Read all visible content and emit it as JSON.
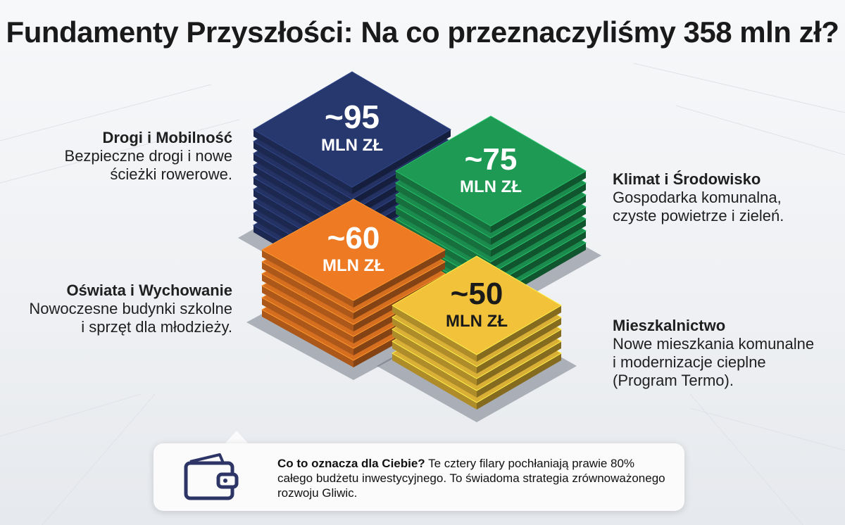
{
  "title": "Fundamenty Przyszłości: Na co przeznaczyliśmy 358 mln zł?",
  "chart_data": {
    "type": "bar",
    "categories": [
      "Drogi i Mobilność",
      "Klimat i Środowisko",
      "Oświata i Wychowanie",
      "Mieszkalnictwo"
    ],
    "values": [
      95,
      75,
      60,
      50
    ],
    "value_labels": [
      "~95",
      "~75",
      "~60",
      "~50"
    ],
    "unit": "MLN ZŁ",
    "colors": [
      "#27386e",
      "#1e9a55",
      "#ee7a24",
      "#f2c23b"
    ],
    "descriptions": [
      [
        "Bezpieczne drogi i nowe",
        "ścieżki rowerowe."
      ],
      [
        "Gospodarka komunalna,",
        "czyste powietrze i zieleń."
      ],
      [
        "Nowoczesne budynki szkolne",
        "i sprzęt dla młodzieży."
      ],
      [
        "Nowe mieszkania komunalne",
        "i modernizacje cieplne",
        "(Program Termo)."
      ]
    ]
  },
  "info": {
    "heading": "Co to oznacza dla Ciebie?",
    "text": "Te cztery filary pochłaniają prawie 80% całego budżetu inwestycyjnego. To świadoma strategia zrównoważonego rozwoju Gliwic.",
    "icon": "wallet-icon"
  }
}
